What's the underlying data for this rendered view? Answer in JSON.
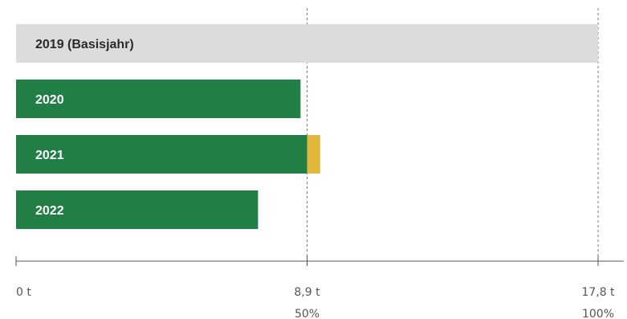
{
  "colors": {
    "baseline_bar": "#dcdcdc",
    "year_bar": "#217e45",
    "excess_bar": "#e2b83a",
    "label_dark": "#2b2b2b",
    "label_light": "#ffffff",
    "axis": "#555555",
    "guide": "#777777"
  },
  "chart_data": {
    "type": "bar",
    "orientation": "horizontal",
    "stacked": true,
    "unit": "t",
    "categories": [
      "2019 (Basisjahr)",
      "2020",
      "2021",
      "2022"
    ],
    "series": [
      {
        "color": "#dcdcdc",
        "values": [
          17.8,
          0,
          0,
          0
        ]
      },
      {
        "color": "#217e45",
        "values": [
          0,
          8.7,
          8.9,
          7.4
        ]
      },
      {
        "color": "#e2b83a",
        "values": [
          0,
          0,
          0.4,
          0
        ]
      }
    ],
    "xlim": [
      0,
      17.8
    ],
    "ticks": [
      {
        "value": 0,
        "label": "0 t",
        "percent": ""
      },
      {
        "value": 8.9,
        "label": "8,9 t",
        "percent": "50%"
      },
      {
        "value": 17.8,
        "label": "17,8 t",
        "percent": "100%"
      }
    ],
    "grid": "dashed-vertical-at-ticks",
    "legend": "none"
  }
}
